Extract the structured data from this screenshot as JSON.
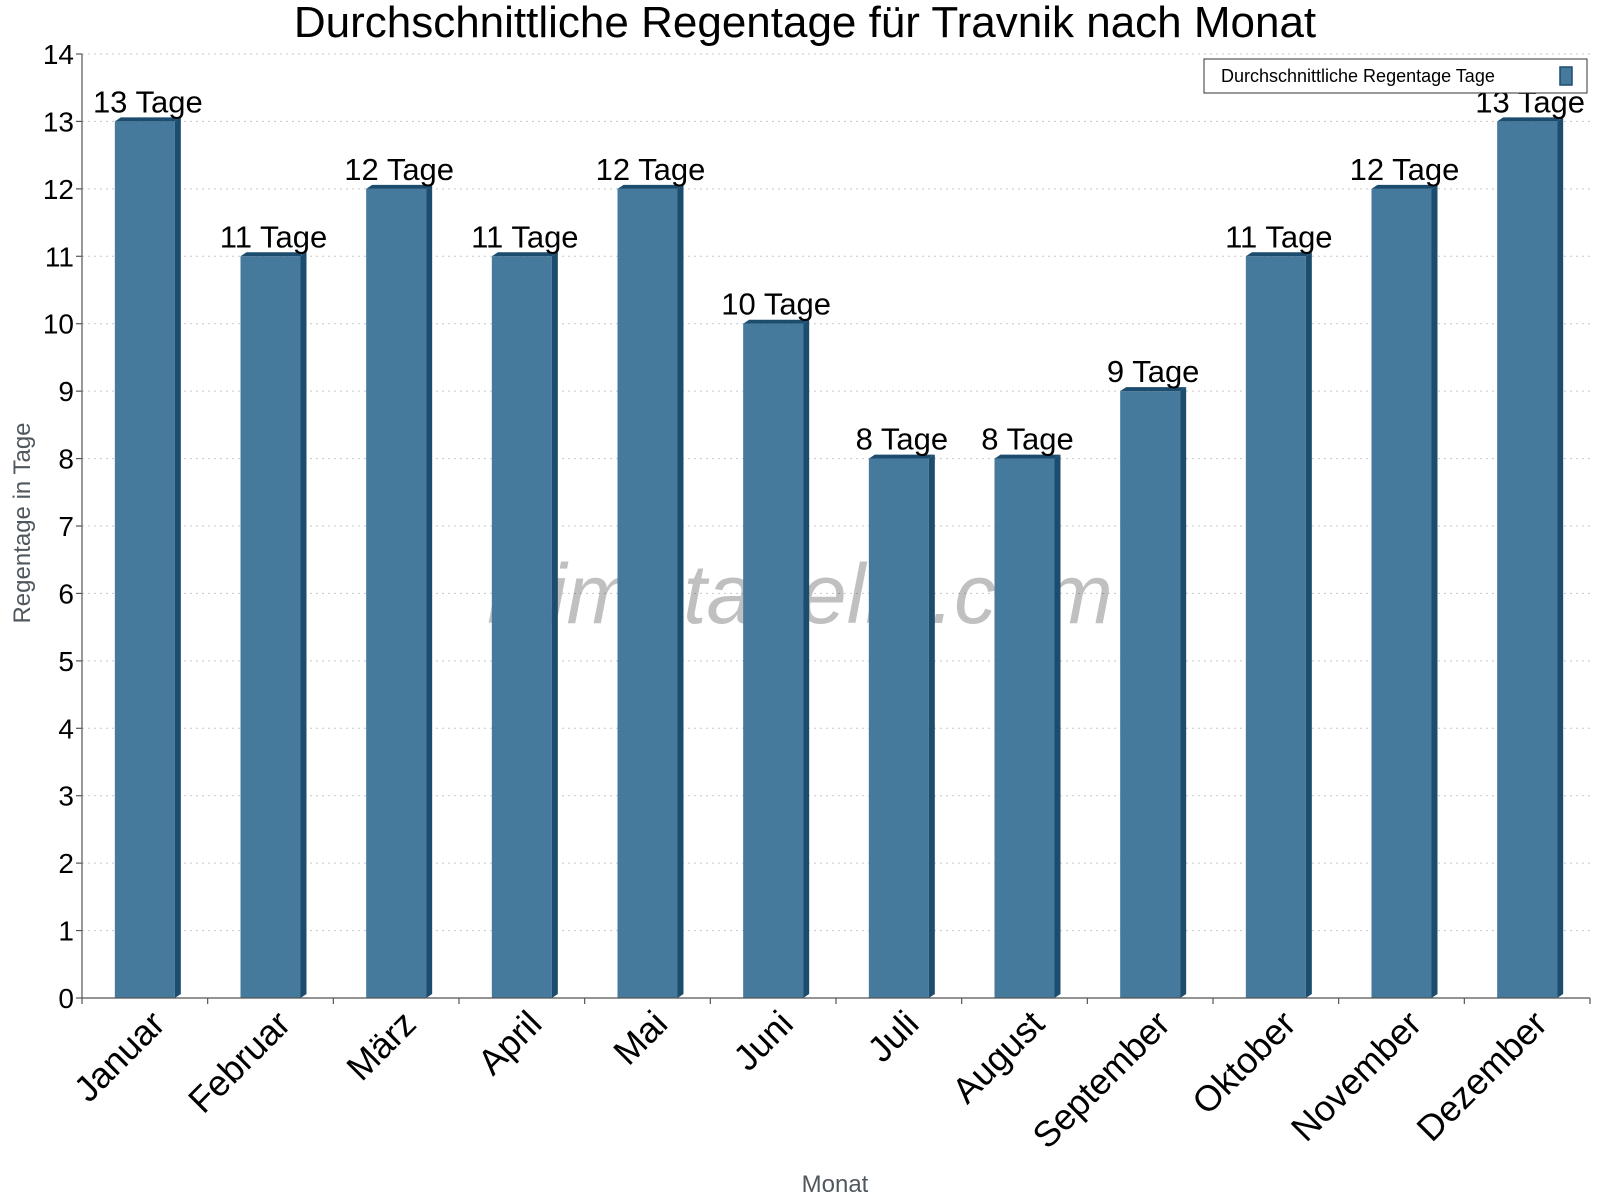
{
  "chart_data": {
    "type": "bar",
    "title": "Durchschnittliche Regentage für Travnik nach Monat",
    "xlabel": "Monat",
    "ylabel": "Regentage in Tage",
    "ylim": [
      0,
      14
    ],
    "yticks": [
      0,
      1,
      2,
      3,
      4,
      5,
      6,
      7,
      8,
      9,
      10,
      11,
      12,
      13,
      14
    ],
    "grid": true,
    "legend_position": "top-right",
    "categories": [
      "Januar",
      "Februar",
      "März",
      "April",
      "Mai",
      "Juni",
      "Juli",
      "August",
      "September",
      "Oktober",
      "November",
      "Dezember"
    ],
    "series": [
      {
        "name": "Durchschnittliche Regentage Tage",
        "values": [
          13,
          11,
          12,
          11,
          12,
          10,
          8,
          8,
          9,
          11,
          12,
          13
        ],
        "labels": [
          "13 Tage",
          "11 Tage",
          "12 Tage",
          "11 Tage",
          "12 Tage",
          "10 Tage",
          "8 Tage",
          "8 Tage",
          "9 Tage",
          "11 Tage",
          "12 Tage",
          "13 Tage"
        ],
        "color": "#467a9d",
        "side_color": "#1c4c6e"
      }
    ],
    "watermark": "klimatabelle.com"
  }
}
